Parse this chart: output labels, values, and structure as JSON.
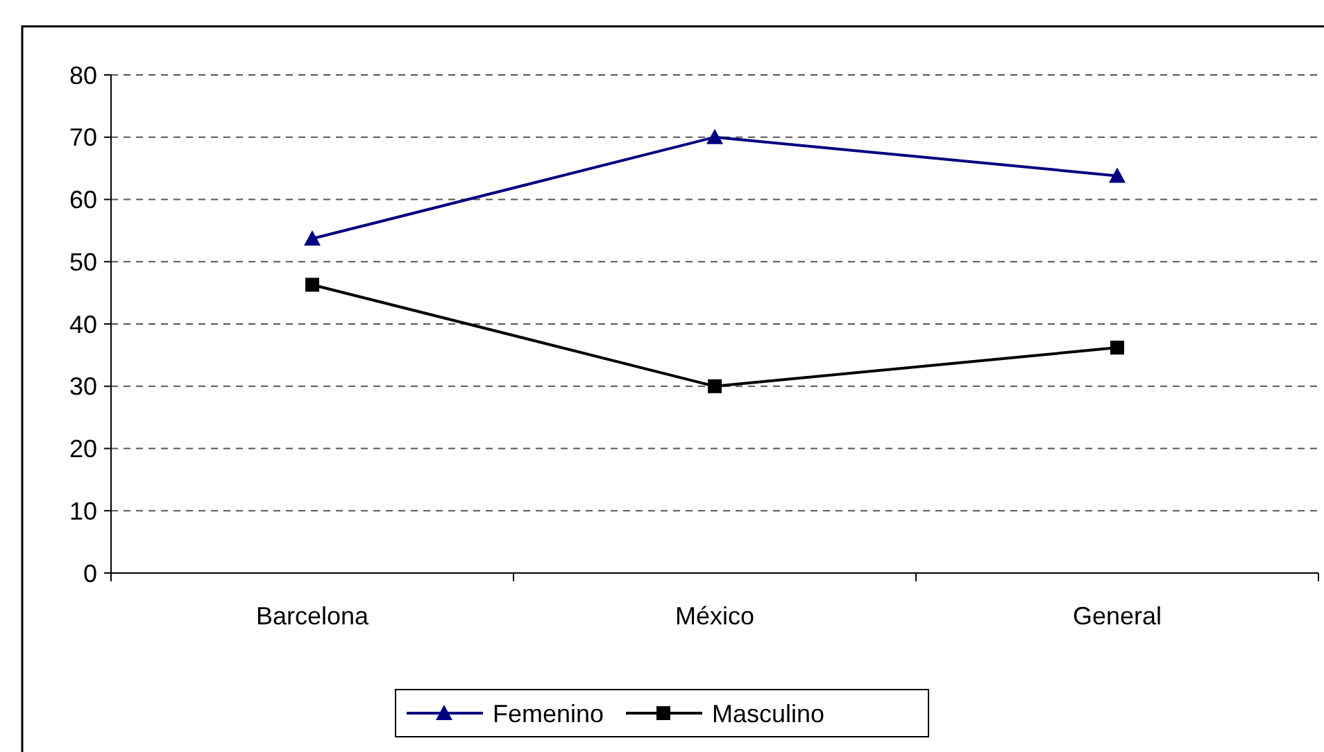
{
  "chart_data": {
    "type": "line",
    "categories": [
      "Barcelona",
      "México",
      "General"
    ],
    "series": [
      {
        "name": "Femenino",
        "color": "#000080",
        "values": [
          53.7,
          70,
          63.8
        ],
        "marker": "triangle"
      },
      {
        "name": "Masculino",
        "color": "#000000",
        "values": [
          46.3,
          30,
          36.2
        ],
        "marker": "square"
      }
    ],
    "ylim": [
      0,
      80
    ],
    "yticks": [
      0,
      10,
      20,
      30,
      40,
      50,
      60,
      70,
      80
    ],
    "grid": "y",
    "legend": "bottom"
  }
}
